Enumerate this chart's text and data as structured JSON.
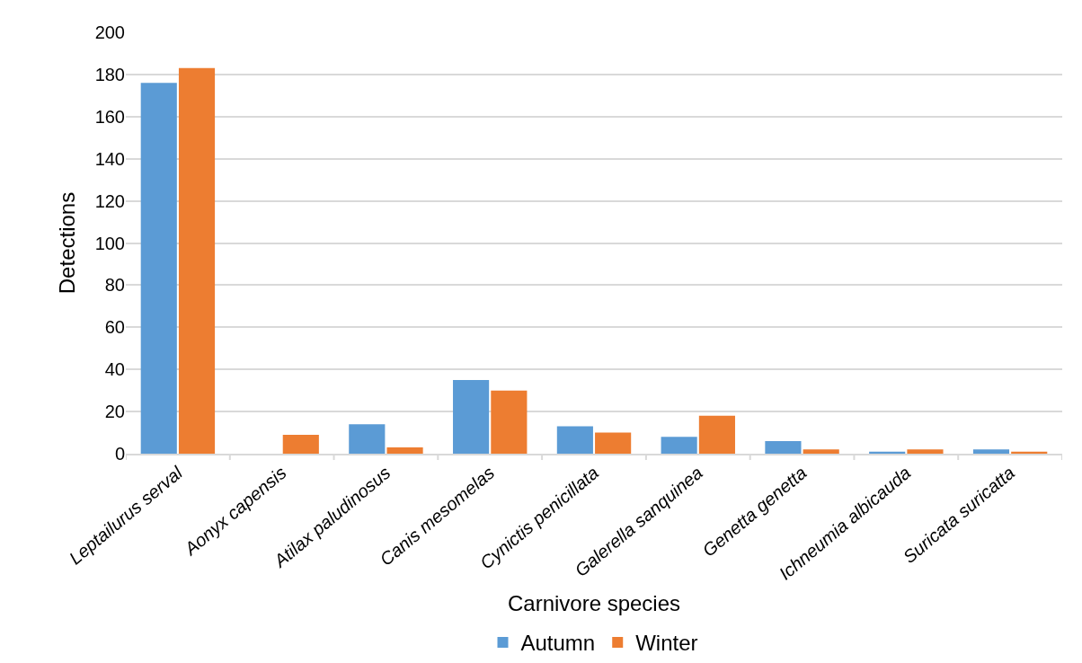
{
  "chart_data": {
    "type": "bar",
    "xlabel": "Carnivore species",
    "ylabel": "Detections",
    "categories": [
      "Leptailurus serval",
      "Aonyx capensis",
      "Atilax paludinosus",
      "Canis mesomelas",
      "Cynictis penicillata",
      "Galerella sanquinea",
      "Genetta genetta",
      "Ichneumia albicauda",
      "Suricata suricatta"
    ],
    "series": [
      {
        "name": "Autumn",
        "color": "#5b9bd5",
        "values": [
          176,
          0,
          14,
          35,
          13,
          8,
          6,
          1,
          2
        ]
      },
      {
        "name": "Winter",
        "color": "#ed7d31",
        "values": [
          183,
          9,
          3,
          30,
          10,
          18,
          2,
          2,
          1
        ]
      }
    ],
    "ylim": [
      0,
      200
    ],
    "yticks": [
      0,
      20,
      40,
      60,
      80,
      100,
      120,
      140,
      160,
      180,
      200
    ],
    "grid": "y",
    "legend": "bottom"
  }
}
